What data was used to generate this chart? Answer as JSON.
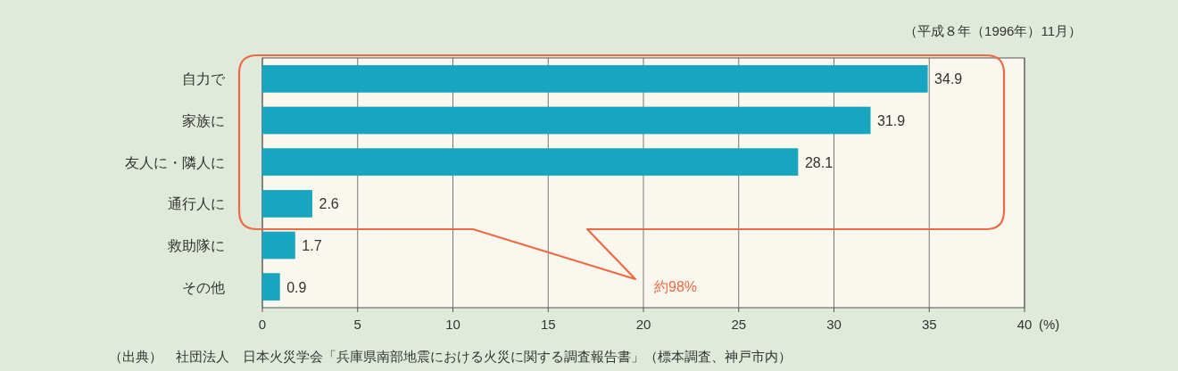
{
  "chart_data": {
    "type": "bar",
    "orientation": "horizontal",
    "categories": [
      "自力で",
      "家族に",
      "友人に・隣人に",
      "通行人に",
      "救助隊に",
      "その他"
    ],
    "values": [
      34.9,
      31.9,
      28.1,
      2.6,
      1.7,
      0.9
    ],
    "color": "#17a5bf",
    "xlim": [
      0,
      40
    ],
    "xticks": [
      0,
      5,
      10,
      15,
      20,
      25,
      30,
      35,
      40
    ],
    "xlabel": "(%)",
    "grid": "x",
    "data_labels": true,
    "annotations": [
      "（平成８年（1996年）11月）",
      "約98%",
      "（出典）　社団法人　日本火災学会「兵庫県南部地震における火災に関する調査報告書」（標本調査、神戸市内）"
    ]
  }
}
